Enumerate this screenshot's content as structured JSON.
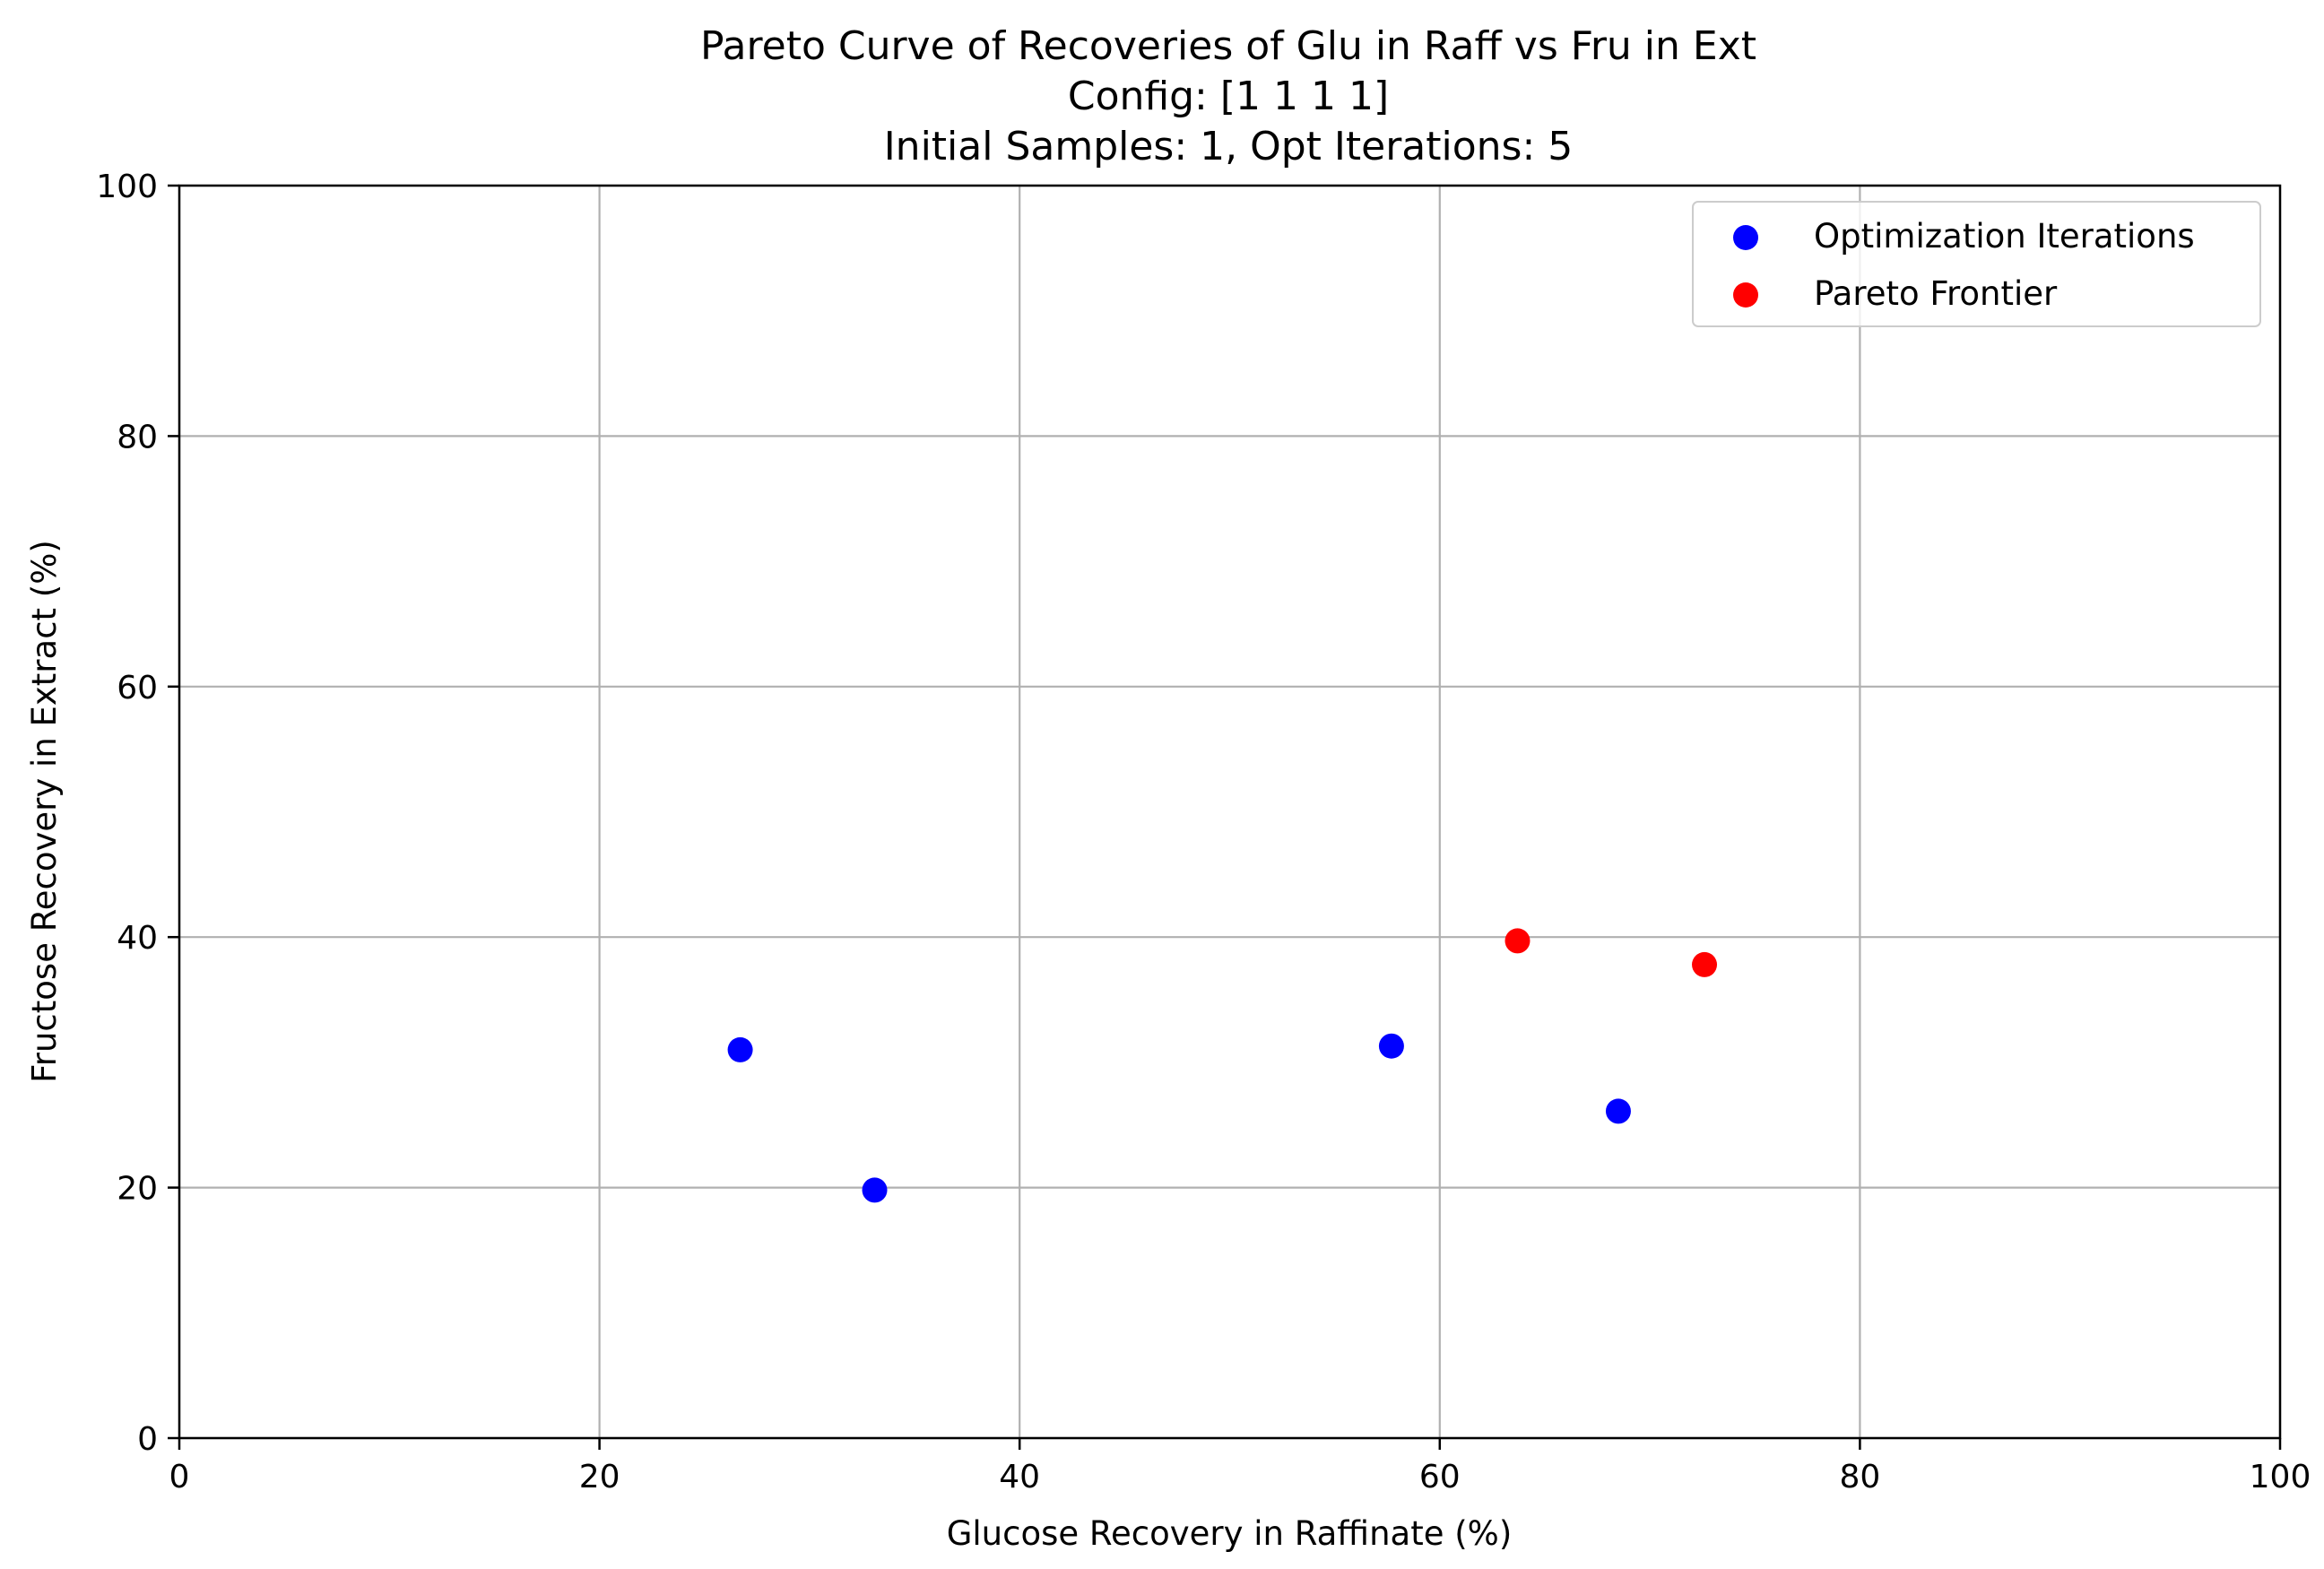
{
  "chart_data": {
    "type": "scatter",
    "title": [
      "Pareto Curve of Recoveries of Glu in Raff vs Fru in Ext",
      "Config: [1 1 1 1]",
      "Initial Samples: 1, Opt Iterations: 5"
    ],
    "xlabel": "Glucose Recovery in Raffinate (%)",
    "ylabel": "Fructose Recovery in Extract (%)",
    "xlim": [
      0,
      100
    ],
    "ylim": [
      0,
      100
    ],
    "xticks": [
      "0",
      "20",
      "40",
      "60",
      "80",
      "100"
    ],
    "yticks": [
      "0",
      "20",
      "40",
      "60",
      "80",
      "100"
    ],
    "grid": true,
    "legend_position": "top-right",
    "series": [
      {
        "name": "Optimization Iterations",
        "color": "#0000ff",
        "points": [
          {
            "x": 26.7,
            "y": 31.0
          },
          {
            "x": 33.1,
            "y": 19.8
          },
          {
            "x": 57.7,
            "y": 31.3
          },
          {
            "x": 68.5,
            "y": 26.1
          }
        ]
      },
      {
        "name": "Pareto Frontier",
        "color": "#ff0000",
        "points": [
          {
            "x": 63.7,
            "y": 39.7
          },
          {
            "x": 72.6,
            "y": 37.8
          }
        ]
      }
    ]
  }
}
